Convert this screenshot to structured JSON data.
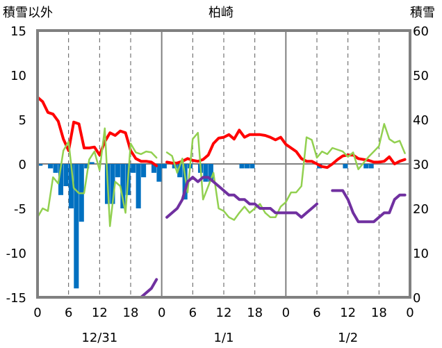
{
  "chart_data": {
    "type": "line",
    "title": "柏崎",
    "left_axis_label": "積雪以外",
    "right_axis_label": "積雪",
    "ylim_left": [
      -15,
      15
    ],
    "ylim_right": [
      0,
      60
    ],
    "yticks_left": [
      "15",
      "10",
      "5",
      "0",
      "-5",
      "-10",
      "-15"
    ],
    "yticks_right": [
      "60",
      "50",
      "40",
      "30",
      "20",
      "10",
      "0"
    ],
    "xticks": [
      "0",
      "6",
      "12",
      "18",
      "0",
      "6",
      "12",
      "18",
      "0",
      "6",
      "12",
      "18",
      "0"
    ],
    "date_labels": [
      "12/31",
      "1/1",
      "1/2"
    ],
    "grid": "dashed vertical lines every 6 hours",
    "colors": {
      "temperature": "#ff0000",
      "humidity_like": "#92d050",
      "snow_depth": "#7030a0",
      "bars_blue": "#0070c0",
      "bars_orange": "#ffc000"
    },
    "series": [
      {
        "axis": "left",
        "values": [
          7.5,
          7.0,
          5.8,
          5.6,
          4.8,
          2.8,
          1.5,
          4.7,
          4.5,
          1.8,
          1.8,
          1.9,
          1.0,
          2.5,
          3.5,
          3.2,
          3.7,
          3.5,
          1.5,
          0.6,
          0.3,
          0.3,
          0.2,
          -0.2,
          null,
          0.2,
          0.1,
          0.1,
          0.3,
          0.6,
          0.4,
          0.3,
          0.5,
          1.0,
          2.3,
          2.9,
          3.0,
          3.3,
          2.8,
          3.8,
          3.0,
          3.3,
          3.3,
          3.3,
          3.2,
          3.0,
          2.7,
          3.0,
          2.2,
          1.8,
          1.4,
          0.6,
          0.3,
          0.3,
          0.0,
          -0.3,
          -0.4,
          0.0,
          0.5,
          0.9,
          1.0,
          1.0,
          0.6,
          0.5,
          0.4,
          0.2,
          0.2,
          0.3,
          0.8,
          0.0,
          0.3,
          0.5
        ]
      },
      {
        "axis": "left",
        "values": [
          -6.0,
          -5.0,
          -5.3,
          -1.5,
          -2.2,
          1.5,
          2.5,
          -2.7,
          -3.3,
          -3.3,
          0.5,
          1.4,
          -0.7,
          4.0,
          -7.0,
          -2.0,
          -2.5,
          -5.5,
          2.3,
          1.3,
          1.1,
          1.4,
          1.3,
          0.7,
          null,
          1.3,
          0.9,
          -1.0,
          0.6,
          -3.2,
          2.8,
          3.5,
          -4.0,
          -2.5,
          -1.0,
          -5.0,
          -5.3,
          -6.0,
          -6.3,
          -5.5,
          -4.8,
          -5.5,
          -5.0,
          -4.5,
          -5.5,
          -6.0,
          -6.0,
          -4.8,
          -4.3,
          -3.2,
          -3.2,
          -2.5,
          3.0,
          2.7,
          0.7,
          1.4,
          1.1,
          1.8,
          1.6,
          1.4,
          0.8,
          1.3,
          -0.6,
          0.1,
          0.8,
          1.4,
          2.0,
          4.5,
          2.8,
          2.4,
          2.6,
          1.2
        ]
      },
      {
        "axis": "right",
        "values": [
          0,
          0,
          0,
          0,
          0,
          0,
          0,
          0,
          0,
          0,
          0,
          0,
          0,
          0,
          0,
          0,
          0,
          0,
          0,
          0,
          0,
          1,
          2,
          4,
          null,
          18,
          19,
          20,
          22,
          26,
          27,
          26,
          27,
          27,
          26,
          25,
          24,
          23,
          23,
          22,
          22,
          21,
          21,
          20,
          20,
          20,
          19,
          19,
          19,
          19,
          19,
          18,
          19,
          20,
          21,
          null,
          null,
          24,
          24,
          24,
          22,
          19,
          17,
          17,
          17,
          17,
          18,
          19,
          19,
          22,
          23,
          23
        ]
      }
    ],
    "bars": [
      {
        "color": "blue",
        "values": [
          -0.2,
          0,
          -0.5,
          -1.0,
          -3.5,
          -2.5,
          -5.0,
          -14.0,
          -6.5,
          -0.5,
          0.2,
          0,
          0,
          -4.5,
          -4.5,
          -1.5,
          -5.0,
          -3.5,
          -1.0,
          -5.0,
          -1.5,
          0,
          -1.0,
          -2.0,
          -0.5,
          0,
          -0.5,
          -1.5,
          -4.0,
          -0.5,
          0,
          -1.0,
          -2.0,
          -2.0,
          0,
          0,
          0,
          0,
          0,
          -0.5,
          -0.5,
          -0.5,
          0,
          0,
          0,
          0,
          0,
          0,
          0,
          0,
          0,
          0,
          0,
          0,
          -0.5,
          0,
          0,
          0,
          0,
          -0.5,
          0,
          0,
          0,
          -0.5,
          -0.5,
          0,
          0,
          0,
          0,
          0,
          0,
          0,
          0
        ]
      },
      {
        "color": "orange",
        "values": [
          0,
          0,
          0,
          0,
          0,
          0,
          0,
          0,
          0,
          0,
          0,
          0,
          0,
          0,
          0,
          0,
          0,
          0,
          0,
          0,
          0,
          0,
          0,
          0,
          0,
          0,
          0,
          0,
          0,
          0,
          0,
          0,
          0,
          0,
          0,
          0,
          0,
          0,
          0,
          0,
          0,
          0,
          0,
          0,
          0,
          0,
          0,
          0,
          0,
          0,
          0,
          0,
          0,
          0,
          0,
          0,
          0,
          0,
          0,
          0,
          0,
          0,
          0,
          0,
          0,
          0,
          0,
          0,
          0,
          0,
          0,
          0,
          0
        ]
      }
    ]
  }
}
